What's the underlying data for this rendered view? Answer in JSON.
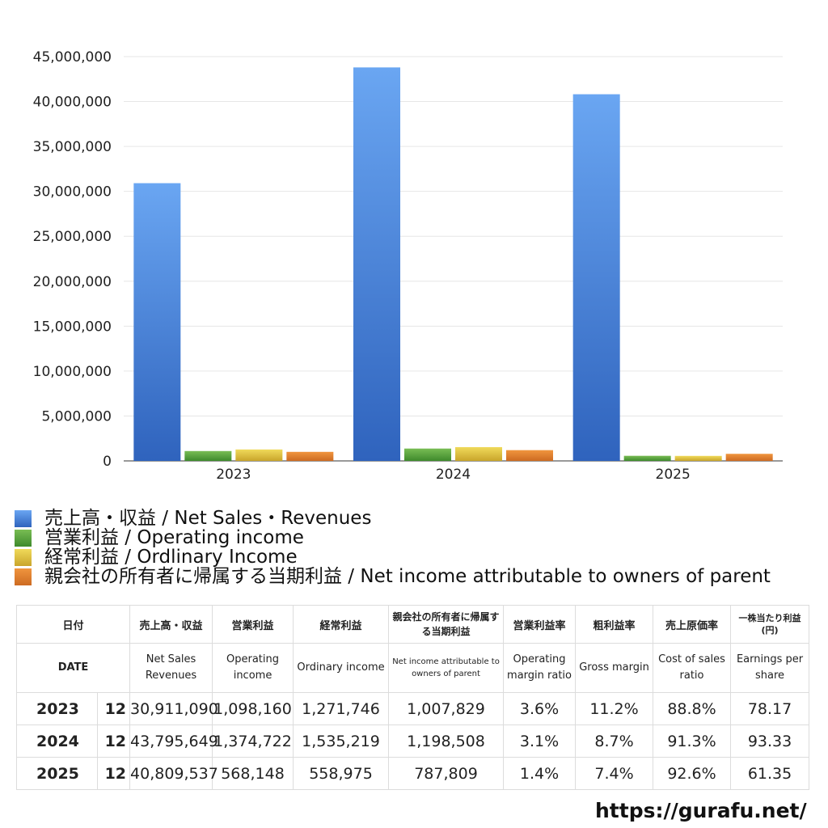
{
  "chart_data": {
    "type": "bar",
    "categories": [
      "2023",
      "2024",
      "2025"
    ],
    "series": [
      {
        "name": "売上高・収益 / Net Sales・Revenues",
        "values": [
          30911090,
          43795649,
          40809537
        ],
        "color": "#4a8ae6"
      },
      {
        "name": "営業利益 / Operating income",
        "values": [
          1098160,
          1374722,
          568148
        ],
        "color": "#5fa83f"
      },
      {
        "name": "経常利益 / Ordlinary Income",
        "values": [
          1271746,
          1535219,
          558975
        ],
        "color": "#e0c43a"
      },
      {
        "name": "親会社の所有者に帰属する当期利益 / Net income attributable to owners of parent",
        "values": [
          1007829,
          1198508,
          787809
        ],
        "color": "#e07f2e"
      }
    ],
    "yticks": [
      "0",
      "5,000,000",
      "10,000,000",
      "15,000,000",
      "20,000,000",
      "25,000,000",
      "30,000,000",
      "35,000,000",
      "40,000,000",
      "45,000,000"
    ],
    "ylim": [
      0,
      45000000
    ],
    "grid": true,
    "legend": "bottom"
  },
  "table": {
    "headers_ja": [
      "日付",
      "売上高・収益",
      "営業利益",
      "経常利益",
      "親会社の所有者に帰属する当期利益",
      "営業利益率",
      "粗利益率",
      "売上原価率",
      "一株当たり利益(円)"
    ],
    "headers_en": [
      "DATE",
      "Net Sales Revenues",
      "Operating income",
      "Ordinary income",
      "Net income attributable to owners of parent",
      "Operating margin ratio",
      "Gross margin",
      "Cost of sales ratio",
      "Earnings per share"
    ],
    "rows": [
      {
        "year": "2023",
        "month": "12",
        "sales": "30,911,090",
        "op": "1,098,160",
        "ord": "1,271,746",
        "net": "1,007,829",
        "opm": "3.6%",
        "gm": "11.2%",
        "cos": "88.8%",
        "eps": "78.17"
      },
      {
        "year": "2024",
        "month": "12",
        "sales": "43,795,649",
        "op": "1,374,722",
        "ord": "1,535,219",
        "net": "1,198,508",
        "opm": "3.1%",
        "gm": "8.7%",
        "cos": "91.3%",
        "eps": "93.33"
      },
      {
        "year": "2025",
        "month": "12",
        "sales": "40,809,537",
        "op": "568,148",
        "ord": "558,975",
        "net": "787,809",
        "opm": "1.4%",
        "gm": "7.4%",
        "cos": "92.6%",
        "eps": "61.35"
      }
    ]
  },
  "footer": {
    "url": "https://gurafu.net/"
  }
}
